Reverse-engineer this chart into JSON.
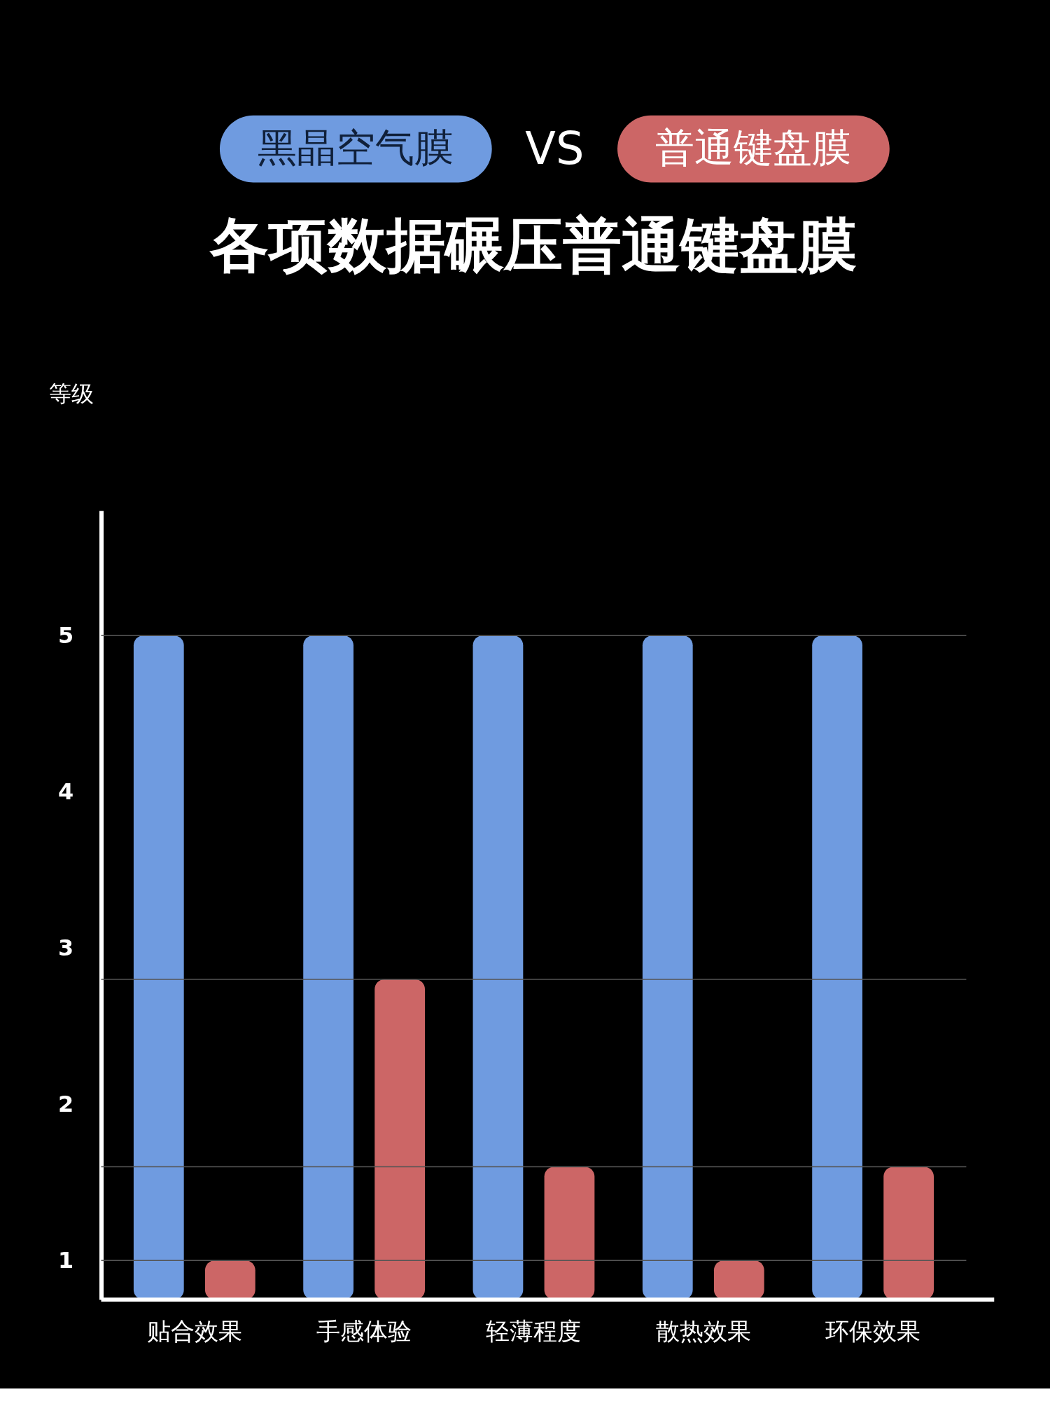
{
  "chart_data": {
    "type": "bar",
    "title": "各项数据碾压普通键盘膜",
    "ylabel": "等级",
    "categories": [
      "贴合效果",
      "手感体验",
      "轻薄程度",
      "散热效果",
      "环保效果"
    ],
    "series": [
      {
        "name": "黑晶空气膜",
        "color": "#6f9be0",
        "values": [
          5,
          5,
          5,
          5,
          5
        ]
      },
      {
        "name": "普通键盘膜",
        "color": "#cc6666",
        "values": [
          1,
          2.8,
          1.6,
          1,
          1.6
        ]
      }
    ],
    "ylim": [
      0.75,
      5.8
    ],
    "yticks": [
      1,
      2,
      3,
      4,
      5
    ],
    "ref_lines": [
      {
        "axis": "y",
        "value": 5,
        "color": "#555555"
      },
      {
        "axis": "y",
        "value": 2.8,
        "color": "#555555"
      },
      {
        "axis": "y",
        "value": 1.6,
        "color": "#555555"
      },
      {
        "axis": "y",
        "value": 1,
        "color": "#555555"
      }
    ],
    "annotations": [
      "VS"
    ],
    "legend": "top",
    "grid": false
  }
}
